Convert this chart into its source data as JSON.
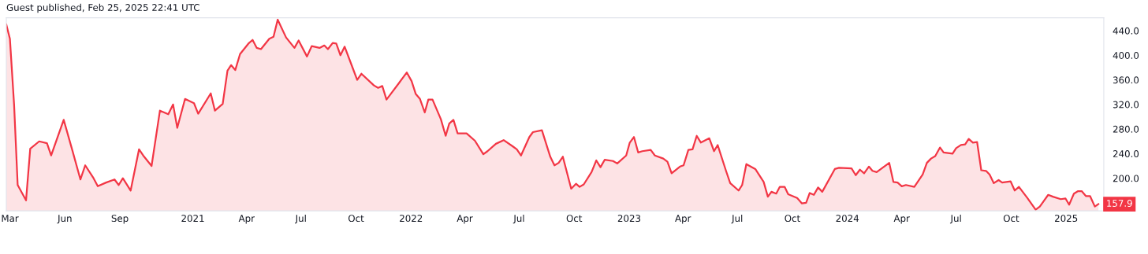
{
  "chart_data": {
    "type": "area",
    "title": "Guest published, Feb 25, 2025 22:41 UTC",
    "x": [
      "2020-02-24",
      "2020-03-01",
      "2020-03-08",
      "2020-03-14",
      "2020-03-28",
      "2020-04-04",
      "2020-04-19",
      "2020-05-02",
      "2020-05-09",
      "2020-05-30",
      "2020-06-13",
      "2020-06-27",
      "2020-07-05",
      "2020-07-19",
      "2020-07-26",
      "2020-08-09",
      "2020-08-23",
      "2020-08-30",
      "2020-09-06",
      "2020-09-19",
      "2020-10-03",
      "2020-10-10",
      "2020-10-24",
      "2020-11-07",
      "2020-11-21",
      "2020-11-29",
      "2020-12-06",
      "2020-12-19",
      "2021-01-03",
      "2021-01-10",
      "2021-01-31",
      "2021-02-07",
      "2021-02-20",
      "2021-02-28",
      "2021-03-06",
      "2021-03-13",
      "2021-03-21",
      "2021-04-04",
      "2021-04-11",
      "2021-04-18",
      "2021-04-25",
      "2021-05-09",
      "2021-05-16",
      "2021-05-23",
      "2021-06-06",
      "2021-06-20",
      "2021-06-27",
      "2021-07-11",
      "2021-07-19",
      "2021-08-01",
      "2021-08-09",
      "2021-08-15",
      "2021-08-23",
      "2021-08-29",
      "2021-09-05",
      "2021-09-12",
      "2021-09-26",
      "2021-10-03",
      "2021-10-10",
      "2021-10-31",
      "2021-11-07",
      "2021-11-14",
      "2021-11-21",
      "2021-11-28",
      "2021-12-12",
      "2021-12-25",
      "2022-01-02",
      "2022-01-09",
      "2022-01-16",
      "2022-01-24",
      "2022-01-30",
      "2022-02-06",
      "2022-02-20",
      "2022-02-28",
      "2022-03-06",
      "2022-03-13",
      "2022-03-20",
      "2022-04-04",
      "2022-04-18",
      "2022-05-02",
      "2022-05-09",
      "2022-05-23",
      "2022-06-05",
      "2022-06-20",
      "2022-06-27",
      "2022-07-04",
      "2022-07-18",
      "2022-07-24",
      "2022-08-08",
      "2022-08-22",
      "2022-08-29",
      "2022-09-05",
      "2022-09-12",
      "2022-09-26",
      "2022-10-04",
      "2022-10-10",
      "2022-10-17",
      "2022-10-30",
      "2022-11-07",
      "2022-11-14",
      "2022-11-21",
      "2022-12-05",
      "2022-12-12",
      "2022-12-27",
      "2023-01-02",
      "2023-01-09",
      "2023-01-16",
      "2023-01-23",
      "2023-02-06",
      "2023-02-13",
      "2023-02-27",
      "2023-03-06",
      "2023-03-13",
      "2023-03-27",
      "2023-04-02",
      "2023-04-10",
      "2023-04-17",
      "2023-04-24",
      "2023-05-01",
      "2023-05-15",
      "2023-05-23",
      "2023-05-29",
      "2023-06-12",
      "2023-06-19",
      "2023-07-03",
      "2023-07-09",
      "2023-07-16",
      "2023-07-31",
      "2023-08-14",
      "2023-08-21",
      "2023-08-27",
      "2023-09-04",
      "2023-09-10",
      "2023-09-18",
      "2023-09-24",
      "2023-10-09",
      "2023-10-17",
      "2023-10-24",
      "2023-10-30",
      "2023-11-06",
      "2023-11-13",
      "2023-11-20",
      "2023-12-11",
      "2023-12-18",
      "2024-01-08",
      "2024-01-15",
      "2024-01-22",
      "2024-01-29",
      "2024-02-06",
      "2024-02-12",
      "2024-02-19",
      "2024-03-11",
      "2024-03-18",
      "2024-03-25",
      "2024-04-01",
      "2024-04-08",
      "2024-04-22",
      "2024-05-06",
      "2024-05-13",
      "2024-05-20",
      "2024-05-27",
      "2024-06-04",
      "2024-06-10",
      "2024-06-25",
      "2024-07-01",
      "2024-07-09",
      "2024-07-16",
      "2024-07-22",
      "2024-07-29",
      "2024-08-05",
      "2024-08-12",
      "2024-08-20",
      "2024-08-26",
      "2024-09-02",
      "2024-09-10",
      "2024-09-16",
      "2024-09-30",
      "2024-10-07",
      "2024-10-14",
      "2024-10-28",
      "2024-11-11",
      "2024-11-18",
      "2024-12-02",
      "2024-12-10",
      "2024-12-23",
      "2024-12-31",
      "2025-01-06",
      "2025-01-14",
      "2025-01-21",
      "2025-01-27",
      "2025-02-03",
      "2025-02-10",
      "2025-02-18",
      "2025-02-24"
    ],
    "series": [
      {
        "color": "#f23645",
        "values": [
          450,
          427,
          320,
          189,
          164,
          248,
          260,
          257,
          237,
          295,
          247,
          198,
          221,
          200,
          187,
          193,
          198,
          189,
          200,
          180,
          247,
          237,
          220,
          310,
          304,
          320,
          282,
          329,
          322,
          305,
          338,
          310,
          321,
          375,
          384,
          376,
          402,
          419,
          425,
          412,
          410,
          427,
          430,
          458,
          429,
          412,
          424,
          398,
          415,
          412,
          416,
          410,
          420,
          419,
          400,
          414,
          378,
          360,
          370,
          351,
          347,
          350,
          328,
          337,
          355,
          372,
          358,
          337,
          329,
          307,
          328,
          328,
          296,
          269,
          289,
          295,
          273,
          273,
          261,
          239,
          244,
          256,
          262,
          252,
          247,
          237,
          267,
          275,
          278,
          235,
          221,
          225,
          235,
          183,
          191,
          186,
          190,
          210,
          229,
          218,
          230,
          228,
          224,
          237,
          258,
          267,
          242,
          244,
          246,
          237,
          232,
          227,
          208,
          219,
          221,
          246,
          247,
          269,
          258,
          265,
          244,
          254,
          212,
          192,
          180,
          189,
          223,
          215,
          194,
          170,
          178,
          175,
          186,
          186,
          174,
          168,
          159,
          160,
          176,
          173,
          185,
          178,
          215,
          217,
          216,
          205,
          214,
          208,
          219,
          212,
          210,
          225,
          194,
          193,
          187,
          189,
          186,
          206,
          225,
          232,
          236,
          250,
          242,
          240,
          249,
          254,
          255,
          264,
          258,
          259,
          213,
          212,
          206,
          192,
          197,
          193,
          195,
          180,
          186,
          168,
          149,
          154,
          173,
          170,
          166,
          167,
          157,
          175,
          179,
          179,
          171,
          171,
          154,
          157.9
        ],
        "value_labels": [
          null,
          null,
          null,
          null,
          null,
          null,
          null,
          null,
          null,
          null,
          null,
          null,
          null,
          null,
          null,
          null,
          null,
          null,
          null,
          null,
          null,
          null,
          null,
          null,
          null,
          null,
          null,
          null,
          null,
          null,
          null,
          null,
          null,
          null,
          null,
          null,
          null,
          null,
          null,
          null,
          null,
          null,
          null,
          null,
          null,
          null,
          null,
          null,
          null,
          null,
          null,
          null,
          null,
          null,
          null,
          null,
          null,
          null,
          null,
          null,
          null,
          null,
          null,
          null,
          null,
          null,
          null,
          null,
          null,
          null,
          null,
          null,
          null,
          null,
          null,
          null,
          null,
          null,
          null,
          null,
          null,
          null,
          null,
          null,
          null,
          null,
          null,
          null,
          null,
          null,
          null,
          null,
          null,
          null,
          null,
          null,
          null,
          null,
          null,
          null,
          null,
          null,
          null,
          null,
          null,
          null,
          null,
          null,
          null,
          null,
          null,
          null,
          null,
          null,
          null,
          null,
          null,
          null,
          null,
          null,
          null,
          null,
          null,
          null,
          null,
          null,
          null,
          null,
          null,
          null,
          null,
          null,
          null,
          null,
          null,
          null,
          null,
          null,
          null,
          null,
          null,
          null,
          null,
          null,
          null,
          null,
          null,
          null,
          null,
          null,
          null,
          null,
          null,
          null,
          null,
          null,
          null,
          null,
          null,
          null,
          null,
          null,
          null,
          null,
          null,
          null,
          null,
          null,
          null,
          null,
          null,
          null,
          null,
          null,
          null,
          null,
          null,
          null,
          null,
          null,
          null,
          null,
          null,
          null,
          null,
          null,
          null,
          null,
          null,
          null,
          null,
          null,
          null,
          "157.9"
        ]
      }
    ],
    "xlim": [
      "2020-02-24",
      "2025-03-05"
    ],
    "xticks": [
      {
        "value": "2020-03-01",
        "label": "Mar"
      },
      {
        "value": "2020-06-01",
        "label": "Jun"
      },
      {
        "value": "2020-09-01",
        "label": "Sep"
      },
      {
        "value": "2021-01-01",
        "label": "2021"
      },
      {
        "value": "2021-04-01",
        "label": "Apr"
      },
      {
        "value": "2021-07-01",
        "label": "Jul"
      },
      {
        "value": "2021-10-01",
        "label": "Oct"
      },
      {
        "value": "2022-01-01",
        "label": "2022"
      },
      {
        "value": "2022-04-01",
        "label": "Apr"
      },
      {
        "value": "2022-07-01",
        "label": "Jul"
      },
      {
        "value": "2022-10-01",
        "label": "Oct"
      },
      {
        "value": "2023-01-01",
        "label": "2023"
      },
      {
        "value": "2023-04-01",
        "label": "Apr"
      },
      {
        "value": "2023-07-01",
        "label": "Jul"
      },
      {
        "value": "2023-10-01",
        "label": "Oct"
      },
      {
        "value": "2024-01-01",
        "label": "2024"
      },
      {
        "value": "2024-04-01",
        "label": "Apr"
      },
      {
        "value": "2024-07-01",
        "label": "Jul"
      },
      {
        "value": "2024-10-01",
        "label": "Oct"
      },
      {
        "value": "2025-01-01",
        "label": "2025"
      }
    ],
    "ylim": [
      147,
      461
    ],
    "yticks": [
      {
        "value": 200,
        "label": "200.0"
      },
      {
        "value": 240,
        "label": "240.0"
      },
      {
        "value": 280,
        "label": "280.0"
      },
      {
        "value": 320,
        "label": "320.0"
      },
      {
        "value": 360,
        "label": "360.0"
      },
      {
        "value": 400,
        "label": "400.0"
      },
      {
        "value": 440,
        "label": "440.0"
      }
    ],
    "grid": false,
    "legend": false
  }
}
